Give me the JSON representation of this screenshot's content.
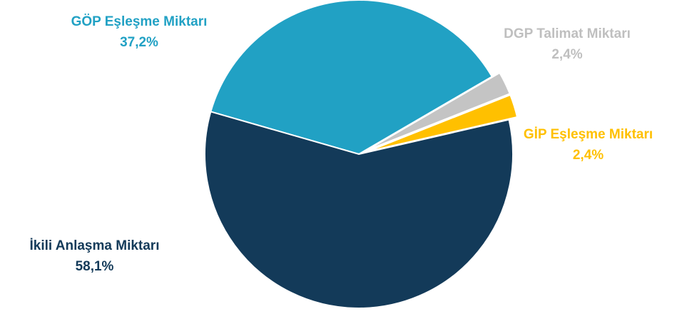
{
  "chart_data": {
    "type": "pie",
    "slices": [
      {
        "label": "GÖP Eşleşme Miktarı",
        "value_label": "37,2%",
        "value": 37.2,
        "color": "#21A1C4"
      },
      {
        "label": "DGP Talimat Miktarı",
        "value_label": "2,4%",
        "value": 2.4,
        "color": "#C4C4C4",
        "exploded": true
      },
      {
        "label": "GİP Eşleşme Miktarı",
        "value_label": "2,4%",
        "value": 2.4,
        "color": "#FFC000",
        "exploded": true
      },
      {
        "label": "İkili Anlaşma Miktarı",
        "value_label": "58,1%",
        "value": 58.1,
        "color": "#133A59"
      }
    ],
    "legend": "none"
  }
}
